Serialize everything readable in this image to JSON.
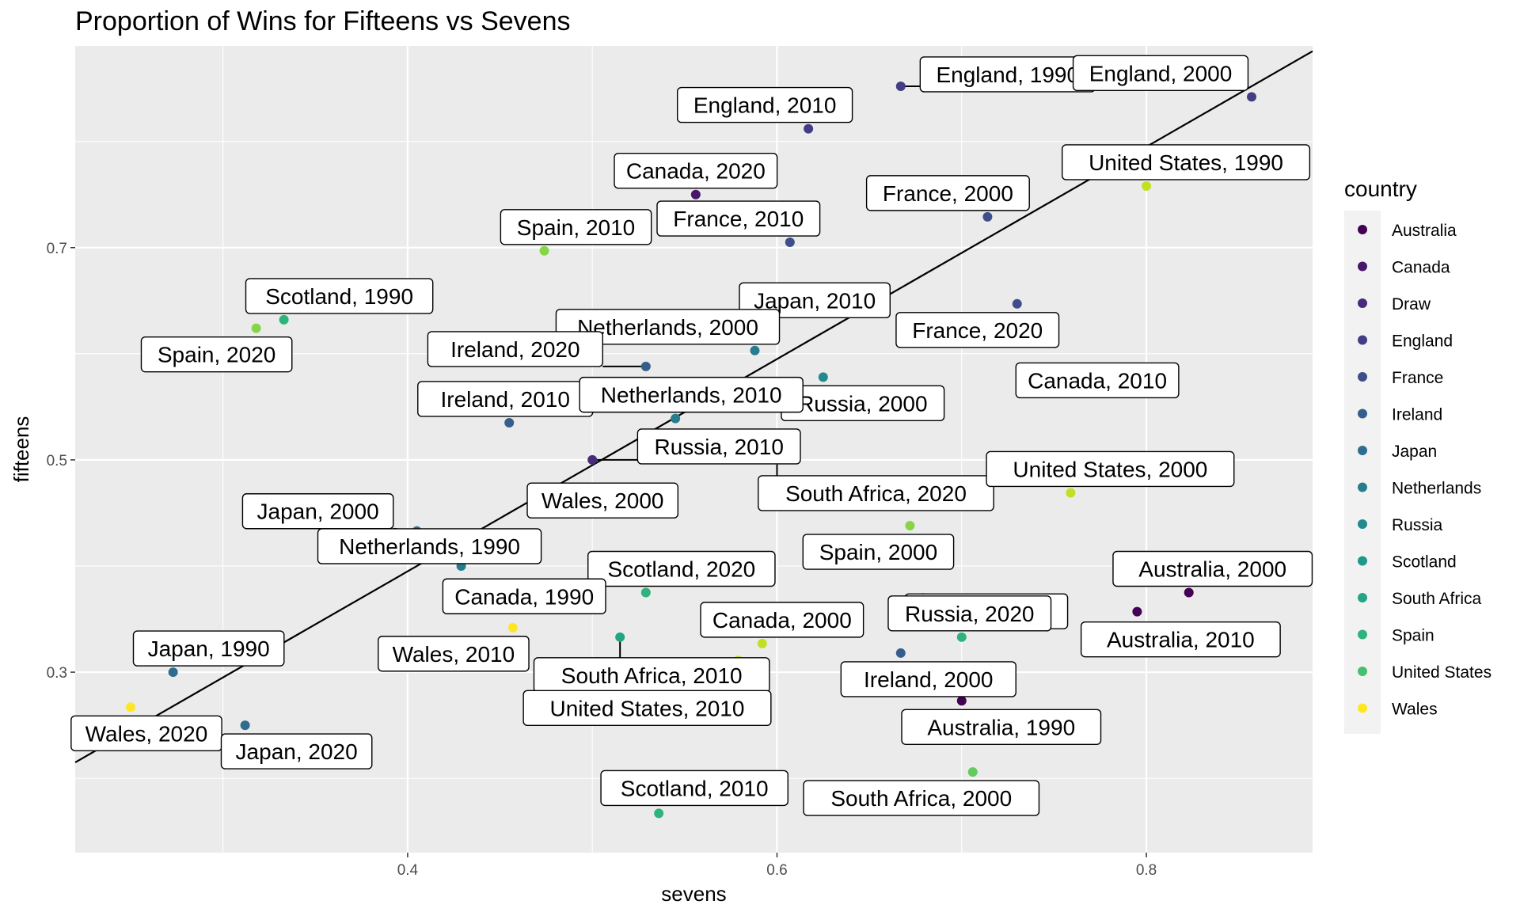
{
  "chart_data": {
    "type": "scatter",
    "title": "Proportion of Wins for Fifteens vs Sevens",
    "xlabel": "sevens",
    "ylabel": "fifteens",
    "xlim": [
      0.22,
      0.89
    ],
    "ylim": [
      0.13,
      0.89
    ],
    "x_ticks": [
      "0.4",
      "0.6",
      "0.8"
    ],
    "y_ticks": [
      "0.3",
      "0.5",
      "0.7"
    ],
    "x_tick_values": [
      0.4,
      0.6,
      0.8
    ],
    "y_tick_values": [
      0.3,
      0.5,
      0.7
    ],
    "grid": true,
    "legend_position": "right",
    "legend_title": "country",
    "legend": [
      {
        "name": "Australia",
        "color": "#440154"
      },
      {
        "name": "Canada",
        "color": "#481769"
      },
      {
        "name": "Draw",
        "color": "#472A7A"
      },
      {
        "name": "England",
        "color": "#433D84"
      },
      {
        "name": "France",
        "color": "#3D4E8A"
      },
      {
        "name": "Ireland",
        "color": "#355E8D"
      },
      {
        "name": "Japan",
        "color": "#2E6D8E"
      },
      {
        "name": "Netherlands",
        "color": "#297B8E"
      },
      {
        "name": "Russia",
        "color": "#23898E"
      },
      {
        "name": "Scotland",
        "color": "#1F978B"
      },
      {
        "name": "South Africa",
        "color": "#21A585"
      },
      {
        "name": "Spain",
        "color": "#2EB37C"
      },
      {
        "name": "United States",
        "color": "#46C06F"
      },
      {
        "name": "Wales",
        "color": "#FDE725"
      }
    ],
    "trend_line": {
      "x": [
        0.22,
        0.89
      ],
      "y": [
        0.215,
        0.885
      ]
    },
    "points": [
      {
        "label": "England, 1990",
        "x": 0.667,
        "y": 0.852,
        "color": "#433D84"
      },
      {
        "label": "England, 2010",
        "x": 0.617,
        "y": 0.812,
        "color": "#433D84"
      },
      {
        "label": "England, 2000",
        "x": 0.857,
        "y": 0.842,
        "color": "#433D84"
      },
      {
        "label": "Canada, 2020",
        "x": 0.556,
        "y": 0.75,
        "color": "#481769"
      },
      {
        "label": "United States, 1990",
        "x": 0.8,
        "y": 0.758,
        "color": "#C2DF23"
      },
      {
        "label": "France, 2000",
        "x": 0.714,
        "y": 0.729,
        "color": "#3D4E8A"
      },
      {
        "label": "France, 2010",
        "x": 0.607,
        "y": 0.705,
        "color": "#3D4E8A"
      },
      {
        "label": "Spain, 2010",
        "x": 0.474,
        "y": 0.697,
        "color": "#86D549"
      },
      {
        "label": "Scotland, 1990",
        "x": 0.333,
        "y": 0.632,
        "color": "#2EB37C"
      },
      {
        "label": "Spain, 2020",
        "x": 0.318,
        "y": 0.624,
        "color": "#86D549"
      },
      {
        "label": "Japan, 2010",
        "x": 0.599,
        "y": 0.628,
        "color": "#2E6D8E"
      },
      {
        "label": "France, 2020",
        "x": 0.73,
        "y": 0.647,
        "color": "#3D4E8A"
      },
      {
        "label": "Netherlands, 2000",
        "x": 0.588,
        "y": 0.603,
        "color": "#297B8E"
      },
      {
        "label": "Ireland, 2020",
        "x": 0.529,
        "y": 0.588,
        "color": "#355E8D"
      },
      {
        "label": "Russia, 2000",
        "x": 0.625,
        "y": 0.578,
        "color": "#23898E"
      },
      {
        "label": "Canada, 2010",
        "x": 0.737,
        "y": 0.566,
        "color": "#481769"
      },
      {
        "label": "Ireland, 2010",
        "x": 0.455,
        "y": 0.535,
        "color": "#355E8D"
      },
      {
        "label": "Netherlands, 2010",
        "x": 0.545,
        "y": 0.539,
        "color": "#297B8E"
      },
      {
        "label": "Russia, 2010",
        "x": 0.5,
        "y": 0.5,
        "color": "#472A7A"
      },
      {
        "label": "South Africa, 2020",
        "x": 0.6,
        "y": 0.5,
        "color": "#86D549"
      },
      {
        "label": "United States, 2000",
        "x": 0.759,
        "y": 0.469,
        "color": "#C2DF23"
      },
      {
        "label": "Wales, 2000",
        "x": 0.542,
        "y": 0.458,
        "color": "#FDE725"
      },
      {
        "label": "Japan, 2000",
        "x": 0.405,
        "y": 0.433,
        "color": "#2E6D8E"
      },
      {
        "label": "Spain, 2000",
        "x": 0.672,
        "y": 0.438,
        "color": "#86D549"
      },
      {
        "label": "Netherlands, 1990",
        "x": 0.429,
        "y": 0.4,
        "color": "#297B8E"
      },
      {
        "label": "Scotland, 2020",
        "x": 0.529,
        "y": 0.375,
        "color": "#2EB37C"
      },
      {
        "label": "Australia, 2000",
        "x": 0.823,
        "y": 0.375,
        "color": "#440154"
      },
      {
        "label": "Canada, 1990",
        "x": 0.491,
        "y": 0.364,
        "color": "#65CB5E"
      },
      {
        "label": "Russia, 2020",
        "x": 0.679,
        "y": 0.37,
        "color": "#481769"
      },
      {
        "label": "Australia, 2010",
        "x": 0.795,
        "y": 0.357,
        "color": "#440154"
      },
      {
        "label": "Wales, 2010",
        "x": 0.457,
        "y": 0.342,
        "color": "#FDE725"
      },
      {
        "label": "South Africa, 2010",
        "x": 0.515,
        "y": 0.333,
        "color": "#21A585"
      },
      {
        "label": "Canada, 2000",
        "x": 0.592,
        "y": 0.327,
        "color": "#C2DF23"
      },
      {
        "label": "Russia, 2020",
        "x": 0.7,
        "y": 0.333,
        "color": "#2EB37C"
      },
      {
        "label": "Ireland, 2000",
        "x": 0.667,
        "y": 0.318,
        "color": "#355E8D"
      },
      {
        "label": "United States, 2010",
        "x": 0.579,
        "y": 0.311,
        "color": "#C2DF23"
      },
      {
        "label": "Japan, 1990",
        "x": 0.273,
        "y": 0.3,
        "color": "#2E6D8E"
      },
      {
        "label": "Australia, 1990",
        "x": 0.7,
        "y": 0.273,
        "color": "#440154"
      },
      {
        "label": "Wales, 2020",
        "x": 0.25,
        "y": 0.267,
        "color": "#FDE725"
      },
      {
        "label": "Japan, 2020",
        "x": 0.312,
        "y": 0.25,
        "color": "#2E6D8E"
      },
      {
        "label": "South Africa, 2000",
        "x": 0.706,
        "y": 0.206,
        "color": "#65CB5E"
      },
      {
        "label": "Scotland, 2010",
        "x": 0.536,
        "y": 0.167,
        "color": "#2EB37C"
      }
    ]
  }
}
